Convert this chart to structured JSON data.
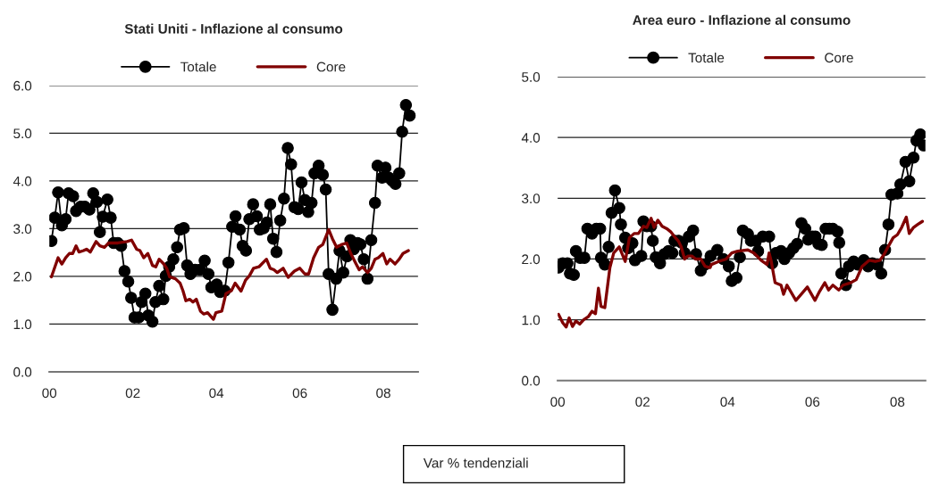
{
  "chart_data": [
    {
      "type": "line",
      "title": "Stati Uniti - Inflazione al consumo",
      "xlim": [
        0,
        8.83
      ],
      "ylim": [
        0,
        6
      ],
      "xticks": [
        {
          "value": 0,
          "label": "00"
        },
        {
          "value": 2,
          "label": "02"
        },
        {
          "value": 4,
          "label": "04"
        },
        {
          "value": 6,
          "label": "06"
        },
        {
          "value": 8,
          "label": "08"
        }
      ],
      "yticks": [
        {
          "value": 0,
          "label": "0.0"
        },
        {
          "value": 1,
          "label": "1.0"
        },
        {
          "value": 2,
          "label": "2.0"
        },
        {
          "value": 3,
          "label": "3.0"
        },
        {
          "value": 4,
          "label": "4.0"
        },
        {
          "value": 5,
          "label": "5.0"
        },
        {
          "value": 6,
          "label": "6.0"
        }
      ],
      "grid": "y",
      "legend": "top",
      "line_style": "solid",
      "annotations": [
        "Var % tendenziali"
      ],
      "series": [
        {
          "name": "Totale",
          "color": "#000000",
          "marker": "circle",
          "x": [
            0.05,
            0.13,
            0.21,
            0.3,
            0.39,
            0.46,
            0.57,
            0.64,
            0.75,
            0.85,
            0.96,
            1.05,
            1.14,
            1.21,
            1.28,
            1.39,
            1.47,
            1.54,
            1.64,
            1.72,
            1.8,
            1.89,
            1.96,
            2.04,
            2.14,
            2.21,
            2.3,
            2.37,
            2.47,
            2.54,
            2.63,
            2.73,
            2.79,
            2.87,
            2.97,
            3.06,
            3.13,
            3.22,
            3.3,
            3.38,
            3.49,
            3.61,
            3.72,
            3.81,
            3.88,
            4.01,
            4.09,
            4.2,
            4.29,
            4.38,
            4.46,
            4.56,
            4.63,
            4.71,
            4.79,
            4.88,
            4.97,
            5.04,
            5.13,
            5.21,
            5.29,
            5.36,
            5.44,
            5.53,
            5.62,
            5.71,
            5.79,
            5.87,
            5.96,
            6.04,
            6.12,
            6.2,
            6.28,
            6.35,
            6.45,
            6.55,
            6.62,
            6.69,
            6.78,
            6.87,
            6.95,
            7.04,
            7.13,
            7.21,
            7.29,
            7.38,
            7.45,
            7.53,
            7.62,
            7.71,
            7.8,
            7.86,
            7.97,
            8.05,
            8.13,
            8.22,
            8.29,
            8.38,
            8.45,
            8.54,
            8.63
          ],
          "values": [
            2.74,
            3.23,
            3.76,
            3.07,
            3.2,
            3.74,
            3.68,
            3.37,
            3.46,
            3.46,
            3.4,
            3.74,
            3.56,
            2.93,
            3.25,
            3.61,
            3.23,
            2.7,
            2.7,
            2.64,
            2.11,
            1.89,
            1.55,
            1.14,
            1.14,
            1.46,
            1.64,
            1.18,
            1.05,
            1.46,
            1.8,
            1.52,
            2.01,
            2.2,
            2.36,
            2.61,
            2.98,
            3.01,
            2.23,
            2.05,
            2.14,
            2.14,
            2.33,
            2.05,
            1.77,
            1.83,
            1.67,
            1.7,
            2.29,
            3.04,
            3.26,
            2.98,
            2.64,
            2.54,
            3.2,
            3.51,
            3.26,
            2.98,
            3.01,
            3.13,
            3.51,
            2.79,
            2.51,
            3.17,
            3.63,
            4.69,
            4.35,
            3.45,
            3.41,
            3.97,
            3.6,
            3.35,
            3.54,
            4.16,
            4.32,
            4.13,
            3.82,
            2.05,
            1.3,
            1.95,
            2.54,
            2.08,
            2.42,
            2.76,
            2.57,
            2.7,
            2.67,
            2.36,
            1.95,
            2.76,
            3.54,
            4.32,
            4.07,
            4.28,
            4.07,
            4.0,
            3.94,
            4.16,
            5.03,
            5.59,
            5.37
          ]
        },
        {
          "name": "Core",
          "color": "#800000",
          "marker": "none",
          "x": [
            0.05,
            0.21,
            0.3,
            0.39,
            0.48,
            0.56,
            0.64,
            0.71,
            0.82,
            0.89,
            0.98,
            1.12,
            1.21,
            1.32,
            1.42,
            1.53,
            1.64,
            1.86,
            1.97,
            2.09,
            2.17,
            2.26,
            2.36,
            2.47,
            2.55,
            2.63,
            2.74,
            2.81,
            2.88,
            3.02,
            3.13,
            3.2,
            3.27,
            3.36,
            3.44,
            3.52,
            3.62,
            3.7,
            3.79,
            3.93,
            3.99,
            4.13,
            4.23,
            4.36,
            4.45,
            4.59,
            4.7,
            4.79,
            4.89,
            5.02,
            5.2,
            5.29,
            5.38,
            5.46,
            5.6,
            5.72,
            5.87,
            6.0,
            6.12,
            6.21,
            6.33,
            6.45,
            6.55,
            6.69,
            6.78,
            6.88,
            7.01,
            7.12,
            7.22,
            7.33,
            7.42,
            7.5,
            7.62,
            7.71,
            7.8,
            7.88,
            7.99,
            8.08,
            8.16,
            8.28,
            8.38,
            8.47,
            8.6
          ],
          "values": [
            1.99,
            2.39,
            2.26,
            2.39,
            2.48,
            2.48,
            2.64,
            2.51,
            2.54,
            2.57,
            2.51,
            2.73,
            2.64,
            2.61,
            2.7,
            2.7,
            2.7,
            2.73,
            2.76,
            2.57,
            2.54,
            2.39,
            2.48,
            2.23,
            2.2,
            2.36,
            2.26,
            2.17,
            1.99,
            1.95,
            1.86,
            1.7,
            1.49,
            1.52,
            1.46,
            1.52,
            1.27,
            1.21,
            1.24,
            1.1,
            1.24,
            1.27,
            1.64,
            1.7,
            1.86,
            1.69,
            1.92,
            2.01,
            2.17,
            2.2,
            2.36,
            2.17,
            2.14,
            2.08,
            2.17,
            1.98,
            2.11,
            2.17,
            2.05,
            2.05,
            2.39,
            2.61,
            2.67,
            2.98,
            2.79,
            2.61,
            2.67,
            2.7,
            2.48,
            2.29,
            2.14,
            2.2,
            2.08,
            2.17,
            2.36,
            2.39,
            2.48,
            2.26,
            2.36,
            2.26,
            2.36,
            2.48,
            2.54
          ]
        }
      ]
    },
    {
      "type": "line",
      "title": "Area euro - Inflazione al consumo",
      "xlim": [
        0,
        8.66
      ],
      "ylim": [
        0,
        5
      ],
      "xticks": [
        {
          "value": 0,
          "label": "00"
        },
        {
          "value": 2,
          "label": "02"
        },
        {
          "value": 4,
          "label": "04"
        },
        {
          "value": 6,
          "label": "06"
        },
        {
          "value": 8,
          "label": "08"
        }
      ],
      "yticks": [
        {
          "value": 0,
          "label": "0.0"
        },
        {
          "value": 1,
          "label": "1.0"
        },
        {
          "value": 2,
          "label": "2.0"
        },
        {
          "value": 3,
          "label": "3.0"
        },
        {
          "value": 4,
          "label": "4.0"
        },
        {
          "value": 5,
          "label": "5.0"
        }
      ],
      "grid": "y",
      "legend": "top",
      "line_style": "solid",
      "series": [
        {
          "name": "Totale",
          "color": "#000000",
          "marker": "circle",
          "x": [
            0.02,
            0.12,
            0.23,
            0.29,
            0.38,
            0.43,
            0.53,
            0.63,
            0.7,
            0.81,
            0.91,
            1.0,
            1.02,
            1.11,
            1.2,
            1.27,
            1.35,
            1.45,
            1.49,
            1.59,
            1.66,
            1.76,
            1.82,
            1.97,
            2.02,
            2.1,
            2.2,
            2.24,
            2.31,
            2.41,
            2.51,
            2.61,
            2.7,
            2.75,
            2.85,
            2.92,
            2.99,
            3.09,
            3.19,
            3.26,
            3.37,
            3.47,
            3.6,
            3.76,
            3.9,
            4.03,
            4.1,
            4.21,
            4.29,
            4.36,
            4.48,
            4.55,
            4.66,
            4.72,
            4.83,
            4.98,
            5.05,
            5.14,
            5.26,
            5.34,
            5.45,
            5.55,
            5.64,
            5.74,
            5.83,
            5.9,
            6.0,
            6.07,
            6.14,
            6.22,
            6.31,
            6.4,
            6.48,
            6.59,
            6.63,
            6.68,
            6.79,
            6.86,
            6.97,
            7.07,
            7.21,
            7.31,
            7.41,
            7.52,
            7.62,
            7.71,
            7.79,
            7.86,
            8.0,
            8.07,
            8.19,
            8.28,
            8.38,
            8.45,
            8.54,
            8.62
          ],
          "values": [
            1.86,
            1.93,
            1.93,
            1.76,
            1.74,
            2.13,
            2.02,
            2.02,
            2.5,
            2.42,
            2.5,
            2.5,
            2.02,
            1.91,
            2.2,
            2.76,
            3.13,
            2.84,
            2.57,
            2.35,
            2.18,
            2.26,
            1.98,
            2.05,
            2.62,
            2.54,
            2.54,
            2.3,
            2.03,
            1.93,
            2.08,
            2.13,
            2.1,
            2.3,
            2.3,
            2.27,
            2.1,
            2.37,
            2.47,
            2.08,
            1.81,
            1.91,
            2.05,
            2.15,
            2.0,
            1.88,
            1.64,
            1.69,
            2.03,
            2.47,
            2.41,
            2.3,
            2.3,
            2.13,
            2.37,
            2.37,
            1.93,
            2.1,
            2.13,
            2.0,
            2.1,
            2.18,
            2.25,
            2.59,
            2.5,
            2.32,
            2.37,
            2.37,
            2.25,
            2.23,
            2.5,
            2.5,
            2.5,
            2.45,
            2.27,
            1.76,
            1.57,
            1.88,
            1.96,
            1.91,
            1.98,
            1.88,
            1.93,
            1.91,
            1.76,
            2.15,
            2.57,
            3.06,
            3.08,
            3.23,
            3.6,
            3.28,
            3.67,
            3.95,
            4.05,
            3.87
          ]
        },
        {
          "name": "Core",
          "color": "#800000",
          "marker": "none",
          "x": [
            0.02,
            0.12,
            0.2,
            0.27,
            0.35,
            0.43,
            0.52,
            0.61,
            0.72,
            0.81,
            0.89,
            0.96,
            1.02,
            1.11,
            1.23,
            1.32,
            1.45,
            1.59,
            1.69,
            1.8,
            1.9,
            2.02,
            2.1,
            2.2,
            2.27,
            2.36,
            2.46,
            2.57,
            2.66,
            2.75,
            2.84,
            2.91,
            2.99,
            3.07,
            3.16,
            3.25,
            3.37,
            3.47,
            3.59,
            3.62,
            3.79,
            3.97,
            4.1,
            4.24,
            4.48,
            4.62,
            4.79,
            4.93,
            4.98,
            5.03,
            5.12,
            5.26,
            5.32,
            5.4,
            5.61,
            5.76,
            5.88,
            6.06,
            6.17,
            6.29,
            6.38,
            6.48,
            6.62,
            6.72,
            6.9,
            7.03,
            7.17,
            7.34,
            7.48,
            7.59,
            7.69,
            7.78,
            7.9,
            8.0,
            8.1,
            8.21,
            8.28,
            8.38,
            8.48,
            8.59
          ],
          "values": [
            1.09,
            0.95,
            0.88,
            1.03,
            0.89,
            0.98,
            0.93,
            1.0,
            1.05,
            1.14,
            1.1,
            1.52,
            1.22,
            1.2,
            1.86,
            2.1,
            2.2,
            1.96,
            2.35,
            2.42,
            2.42,
            2.54,
            2.52,
            2.67,
            2.52,
            2.64,
            2.54,
            2.5,
            2.45,
            2.37,
            2.3,
            2.2,
            2.0,
            2.05,
            2.05,
            2.0,
            2.0,
            1.88,
            1.86,
            1.91,
            1.96,
            2.0,
            2.1,
            2.13,
            2.15,
            2.1,
            1.98,
            1.91,
            2.1,
            1.96,
            1.61,
            1.57,
            1.42,
            1.57,
            1.32,
            1.44,
            1.54,
            1.32,
            1.47,
            1.61,
            1.49,
            1.57,
            1.49,
            1.57,
            1.61,
            1.66,
            1.88,
            1.98,
            1.96,
            1.98,
            2.08,
            2.2,
            2.35,
            2.4,
            2.52,
            2.69,
            2.42,
            2.52,
            2.57,
            2.62
          ]
        }
      ]
    }
  ]
}
